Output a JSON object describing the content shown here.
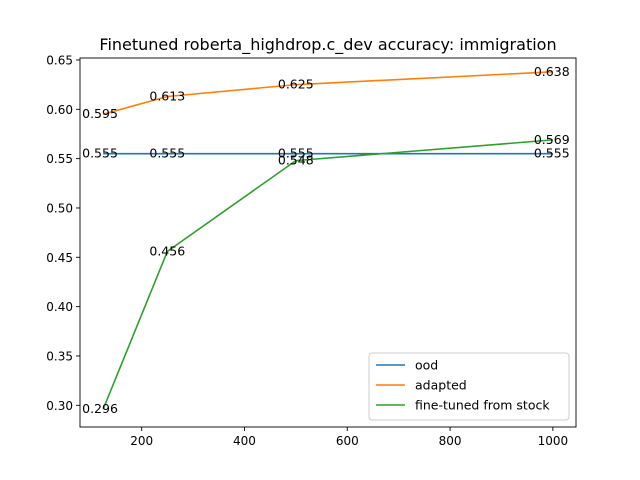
{
  "chart_data": {
    "type": "line",
    "title": "Finetuned roberta_highdrop.c_dev accuracy: immigration",
    "xlabel": "",
    "ylabel": "",
    "xlim": [
      80,
      1045
    ],
    "ylim": [
      0.278,
      0.652
    ],
    "xticks": [
      200,
      400,
      600,
      800,
      1000
    ],
    "yticks": [
      0.3,
      0.35,
      0.4,
      0.45,
      0.5,
      0.55,
      0.6,
      0.65
    ],
    "ytick_labels": [
      "0.30",
      "0.35",
      "0.40",
      "0.45",
      "0.50",
      "0.55",
      "0.60",
      "0.65"
    ],
    "xtick_labels": [
      "200",
      "400",
      "600",
      "800",
      "1000"
    ],
    "x": [
      125,
      250,
      500,
      1000
    ],
    "series": [
      {
        "name": "ood",
        "color": "#1f77b4",
        "values": [
          0.555,
          0.555,
          0.555,
          0.555
        ],
        "labels": [
          "0.555",
          "0.555",
          "0.555",
          "0.555"
        ]
      },
      {
        "name": "adapted",
        "color": "#ff7f0e",
        "values": [
          0.595,
          0.613,
          0.625,
          0.638
        ],
        "labels": [
          "0.595",
          "0.613",
          "0.625",
          "0.638"
        ]
      },
      {
        "name": "fine-tuned from stock",
        "color": "#2ca02c",
        "values": [
          0.296,
          0.456,
          0.548,
          0.569
        ],
        "labels": [
          "0.296",
          "0.456",
          "0.548",
          "0.569"
        ]
      }
    ],
    "legend": {
      "position": "lower right"
    },
    "grid": false
  }
}
